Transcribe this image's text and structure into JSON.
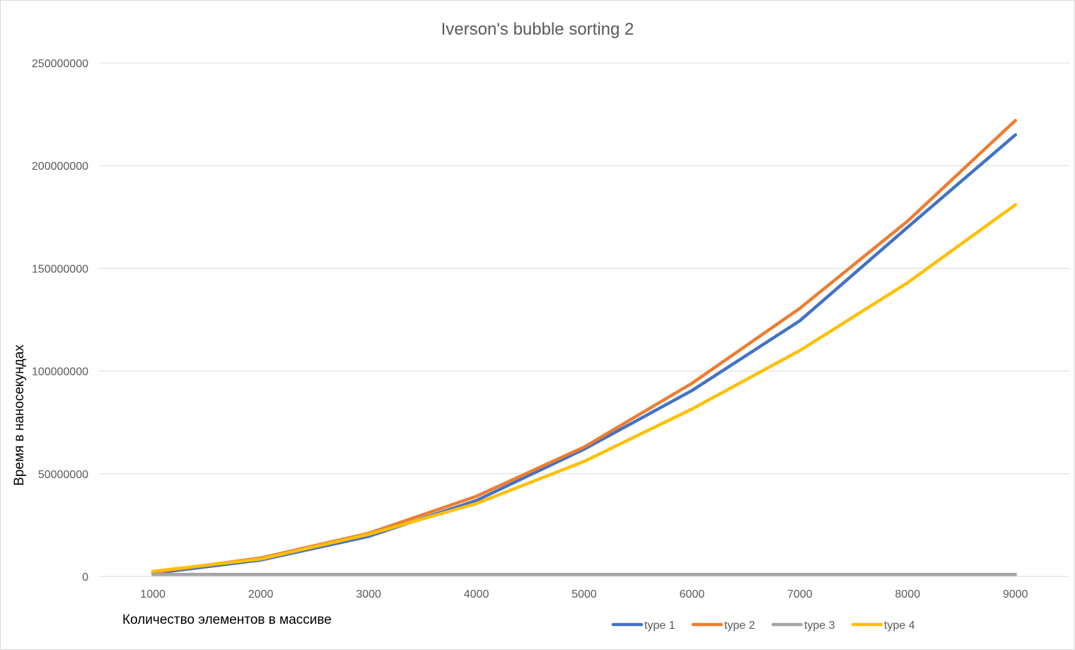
{
  "chart_data": {
    "type": "line",
    "title": "Iverson's bubble sorting 2",
    "xlabel": "Количество элементов в массиве",
    "ylabel": "Время в наносекундах",
    "x": [
      1000,
      2000,
      3000,
      4000,
      5000,
      6000,
      7000,
      8000,
      9000
    ],
    "x_tick_labels": [
      "1000",
      "2000",
      "3000",
      "4000",
      "5000",
      "6000",
      "7000",
      "8000",
      "9000"
    ],
    "y_ticks": [
      0,
      50000000,
      100000000,
      150000000,
      200000000,
      250000000
    ],
    "y_tick_labels": [
      "0",
      "50000000",
      "100000000",
      "150000000",
      "200000000",
      "250000000"
    ],
    "ylim": [
      0,
      250000000
    ],
    "grid": "horizontal",
    "legend_position": "bottom-right",
    "series": [
      {
        "name": "type 1",
        "color": "#4472C4",
        "values": [
          1500000,
          8000000,
          19500000,
          37000000,
          62000000,
          90500000,
          124500000,
          170000000,
          215000000
        ]
      },
      {
        "name": "type 2",
        "color": "#ED7D31",
        "values": [
          2000000,
          9000000,
          21000000,
          39000000,
          63000000,
          94000000,
          130500000,
          173000000,
          222000000
        ]
      },
      {
        "name": "type 3",
        "color": "#A5A5A5",
        "values": [
          1000000,
          1000000,
          1000000,
          1000000,
          1000000,
          1000000,
          1000000,
          1000000,
          1000000
        ]
      },
      {
        "name": "type 4",
        "color": "#FFC000",
        "values": [
          2500000,
          8500000,
          20500000,
          35500000,
          56000000,
          81500000,
          110000000,
          143000000,
          181000000
        ]
      }
    ]
  }
}
